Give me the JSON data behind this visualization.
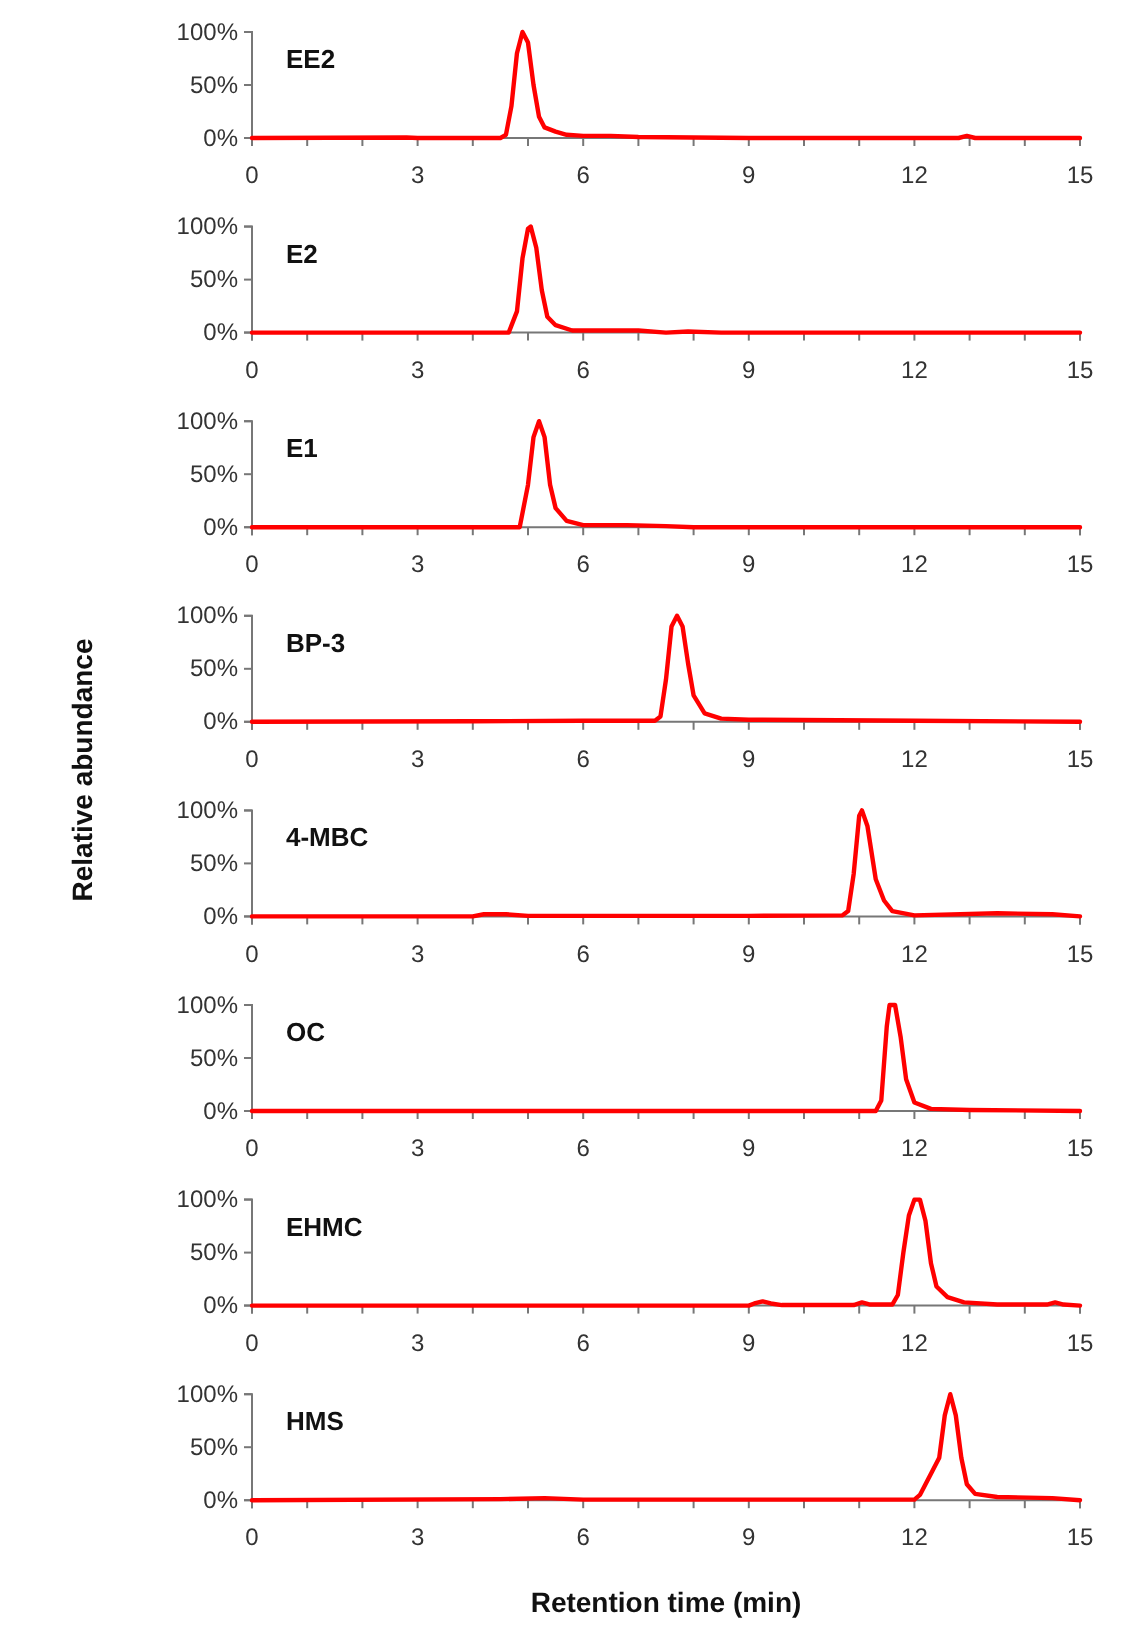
{
  "chart_data": [
    {
      "type": "line",
      "title": "EE2",
      "xlim": [
        0,
        15
      ],
      "ylim": [
        0,
        100
      ],
      "xticks": [
        0,
        {
          "value": 1,
          "label": null
        },
        {
          "value": 2,
          "label": null
        },
        3,
        {
          "value": 4,
          "label": null
        },
        {
          "value": 5,
          "label": null
        },
        6,
        {
          "value": 7,
          "label": null
        },
        {
          "value": 8,
          "label": null
        },
        9,
        {
          "value": 10,
          "label": null
        },
        {
          "value": 11,
          "label": null
        },
        12,
        {
          "value": 13,
          "label": null
        },
        {
          "value": 14,
          "label": null
        },
        15
      ],
      "yticks": [
        {
          "value": 0,
          "label": "0%"
        },
        {
          "value": 50,
          "label": "50%"
        },
        {
          "value": 100,
          "label": "100%"
        }
      ],
      "series": [
        {
          "color": "#ff0000",
          "x": [
            0,
            2.8,
            3,
            4.5,
            4.6,
            4.7,
            4.8,
            4.9,
            5.0,
            5.1,
            5.2,
            5.3,
            5.5,
            5.7,
            6,
            6.5,
            7,
            8,
            9,
            12,
            12.8,
            12.95,
            13.1,
            15
          ],
          "values": [
            0,
            0.5,
            0,
            0,
            3,
            30,
            80,
            100,
            90,
            50,
            20,
            10,
            6,
            3,
            2,
            2,
            1,
            0.5,
            0,
            0,
            0,
            2,
            0,
            0
          ]
        }
      ]
    },
    {
      "type": "line",
      "title": "E2",
      "xlim": [
        0,
        15
      ],
      "ylim": [
        0,
        100
      ],
      "xticks": [
        0,
        {
          "value": 1,
          "label": null
        },
        {
          "value": 2,
          "label": null
        },
        3,
        {
          "value": 4,
          "label": null
        },
        {
          "value": 5,
          "label": null
        },
        6,
        {
          "value": 7,
          "label": null
        },
        {
          "value": 8,
          "label": null
        },
        9,
        {
          "value": 10,
          "label": null
        },
        {
          "value": 11,
          "label": null
        },
        12,
        {
          "value": 13,
          "label": null
        },
        {
          "value": 14,
          "label": null
        },
        15
      ],
      "yticks": [
        {
          "value": 0,
          "label": "0%"
        },
        {
          "value": 50,
          "label": "50%"
        },
        {
          "value": 100,
          "label": "100%"
        }
      ],
      "series": [
        {
          "color": "#ff0000",
          "x": [
            0,
            4.65,
            4.8,
            4.9,
            5.0,
            5.05,
            5.15,
            5.25,
            5.35,
            5.5,
            5.8,
            6.5,
            7,
            7.5,
            7.9,
            8.5,
            15
          ],
          "values": [
            0,
            0,
            20,
            70,
            98,
            100,
            80,
            40,
            15,
            7,
            2,
            2,
            2,
            0,
            1,
            0,
            0
          ]
        }
      ]
    },
    {
      "type": "line",
      "title": "E1",
      "xlim": [
        0,
        15
      ],
      "ylim": [
        0,
        100
      ],
      "xticks": [
        0,
        {
          "value": 1,
          "label": null
        },
        {
          "value": 2,
          "label": null
        },
        3,
        {
          "value": 4,
          "label": null
        },
        {
          "value": 5,
          "label": null
        },
        6,
        {
          "value": 7,
          "label": null
        },
        {
          "value": 8,
          "label": null
        },
        9,
        {
          "value": 10,
          "label": null
        },
        {
          "value": 11,
          "label": null
        },
        12,
        {
          "value": 13,
          "label": null
        },
        {
          "value": 14,
          "label": null
        },
        15
      ],
      "yticks": [
        {
          "value": 0,
          "label": "0%"
        },
        {
          "value": 50,
          "label": "50%"
        },
        {
          "value": 100,
          "label": "100%"
        }
      ],
      "series": [
        {
          "color": "#ff0000",
          "x": [
            0,
            4.85,
            5.0,
            5.1,
            5.2,
            5.3,
            5.4,
            5.5,
            5.7,
            6,
            6.8,
            7.5,
            8,
            15
          ],
          "values": [
            0,
            0,
            40,
            85,
            100,
            85,
            40,
            18,
            6,
            2,
            2,
            1,
            0,
            0
          ]
        }
      ]
    },
    {
      "type": "line",
      "title": "BP-3",
      "ylabel": "Relative abundance",
      "xlim": [
        0,
        15
      ],
      "ylim": [
        0,
        100
      ],
      "xticks": [
        0,
        {
          "value": 1,
          "label": null
        },
        {
          "value": 2,
          "label": null
        },
        3,
        {
          "value": 4,
          "label": null
        },
        {
          "value": 5,
          "label": null
        },
        6,
        {
          "value": 7,
          "label": null
        },
        {
          "value": 8,
          "label": null
        },
        9,
        {
          "value": 10,
          "label": null
        },
        {
          "value": 11,
          "label": null
        },
        12,
        {
          "value": 13,
          "label": null
        },
        {
          "value": 14,
          "label": null
        },
        15
      ],
      "yticks": [
        {
          "value": 0,
          "label": "0%"
        },
        {
          "value": 50,
          "label": "50%"
        },
        {
          "value": 100,
          "label": "100%"
        }
      ],
      "series": [
        {
          "color": "#ff0000",
          "x": [
            0,
            4,
            6,
            7.3,
            7.4,
            7.5,
            7.6,
            7.7,
            7.8,
            7.9,
            8,
            8.2,
            8.5,
            9,
            12,
            15
          ],
          "values": [
            0,
            0.5,
            1,
            1,
            5,
            40,
            90,
            100,
            90,
            55,
            25,
            8,
            3,
            2,
            1,
            0
          ]
        }
      ]
    },
    {
      "type": "line",
      "title": "4-MBC",
      "xlim": [
        0,
        15
      ],
      "ylim": [
        0,
        100
      ],
      "xticks": [
        0,
        {
          "value": 1,
          "label": null
        },
        {
          "value": 2,
          "label": null
        },
        3,
        {
          "value": 4,
          "label": null
        },
        {
          "value": 5,
          "label": null
        },
        6,
        {
          "value": 7,
          "label": null
        },
        {
          "value": 8,
          "label": null
        },
        9,
        {
          "value": 10,
          "label": null
        },
        {
          "value": 11,
          "label": null
        },
        12,
        {
          "value": 13,
          "label": null
        },
        {
          "value": 14,
          "label": null
        },
        15
      ],
      "yticks": [
        {
          "value": 0,
          "label": "0%"
        },
        {
          "value": 50,
          "label": "50%"
        },
        {
          "value": 100,
          "label": "100%"
        }
      ],
      "series": [
        {
          "color": "#ff0000",
          "x": [
            0,
            4,
            4.2,
            4.6,
            5,
            9,
            10.7,
            10.8,
            10.9,
            11,
            11.05,
            11.15,
            11.3,
            11.45,
            11.6,
            12,
            13.5,
            14.5,
            15
          ],
          "values": [
            0,
            0,
            2,
            2,
            0.5,
            0.5,
            1,
            5,
            40,
            95,
            100,
            85,
            35,
            15,
            5,
            1,
            3,
            2,
            0
          ]
        }
      ]
    },
    {
      "type": "line",
      "title": "OC",
      "xlim": [
        0,
        15
      ],
      "ylim": [
        0,
        100
      ],
      "xticks": [
        0,
        {
          "value": 1,
          "label": null
        },
        {
          "value": 2,
          "label": null
        },
        3,
        {
          "value": 4,
          "label": null
        },
        {
          "value": 5,
          "label": null
        },
        6,
        {
          "value": 7,
          "label": null
        },
        {
          "value": 8,
          "label": null
        },
        9,
        {
          "value": 10,
          "label": null
        },
        {
          "value": 11,
          "label": null
        },
        12,
        {
          "value": 13,
          "label": null
        },
        {
          "value": 14,
          "label": null
        },
        15
      ],
      "yticks": [
        {
          "value": 0,
          "label": "0%"
        },
        {
          "value": 50,
          "label": "50%"
        },
        {
          "value": 100,
          "label": "100%"
        }
      ],
      "series": [
        {
          "color": "#ff0000",
          "x": [
            0,
            11.3,
            11.4,
            11.5,
            11.55,
            11.65,
            11.75,
            11.85,
            12,
            12.3,
            13,
            15
          ],
          "values": [
            0,
            0,
            10,
            80,
            100,
            100,
            70,
            30,
            8,
            2,
            1,
            0
          ]
        }
      ]
    },
    {
      "type": "line",
      "title": "EHMC",
      "xlim": [
        0,
        15
      ],
      "ylim": [
        0,
        100
      ],
      "xticks": [
        0,
        {
          "value": 1,
          "label": null
        },
        {
          "value": 2,
          "label": null
        },
        3,
        {
          "value": 4,
          "label": null
        },
        {
          "value": 5,
          "label": null
        },
        6,
        {
          "value": 7,
          "label": null
        },
        {
          "value": 8,
          "label": null
        },
        9,
        {
          "value": 10,
          "label": null
        },
        {
          "value": 11,
          "label": null
        },
        12,
        {
          "value": 13,
          "label": null
        },
        {
          "value": 14,
          "label": null
        },
        15
      ],
      "yticks": [
        {
          "value": 0,
          "label": "0%"
        },
        {
          "value": 50,
          "label": "50%"
        },
        {
          "value": 100,
          "label": "100%"
        }
      ],
      "series": [
        {
          "color": "#ff0000",
          "x": [
            0,
            9,
            9.1,
            9.25,
            9.4,
            9.6,
            10.9,
            11.05,
            11.2,
            11.6,
            11.7,
            11.8,
            11.9,
            12.0,
            12.1,
            12.2,
            12.3,
            12.4,
            12.6,
            12.9,
            13.5,
            14.4,
            14.55,
            14.7,
            15
          ],
          "values": [
            0,
            0,
            2,
            4,
            2,
            0.5,
            0.5,
            3,
            1,
            1,
            10,
            50,
            85,
            100,
            100,
            80,
            40,
            18,
            8,
            3,
            1,
            1,
            3,
            1,
            0
          ]
        }
      ]
    },
    {
      "type": "line",
      "title": "HMS",
      "xlabel": "Retention time (min)",
      "xlim": [
        0,
        15
      ],
      "ylim": [
        0,
        100
      ],
      "xticks": [
        0,
        {
          "value": 1,
          "label": null
        },
        {
          "value": 2,
          "label": null
        },
        3,
        {
          "value": 4,
          "label": null
        },
        {
          "value": 5,
          "label": null
        },
        6,
        {
          "value": 7,
          "label": null
        },
        {
          "value": 8,
          "label": null
        },
        9,
        {
          "value": 10,
          "label": null
        },
        {
          "value": 11,
          "label": null
        },
        12,
        {
          "value": 13,
          "label": null
        },
        {
          "value": 14,
          "label": null
        },
        15
      ],
      "yticks": [
        {
          "value": 0,
          "label": "0%"
        },
        {
          "value": 50,
          "label": "50%"
        },
        {
          "value": 100,
          "label": "100%"
        }
      ],
      "series": [
        {
          "color": "#ff0000",
          "x": [
            0,
            4.5,
            5.3,
            6,
            12,
            12.1,
            12.3,
            12.45,
            12.55,
            12.65,
            12.75,
            12.85,
            12.95,
            13.1,
            13.5,
            14.5,
            15
          ],
          "values": [
            0,
            1,
            2,
            0.5,
            0.5,
            5,
            25,
            40,
            80,
            100,
            80,
            40,
            15,
            6,
            3,
            2,
            0
          ]
        }
      ]
    }
  ]
}
